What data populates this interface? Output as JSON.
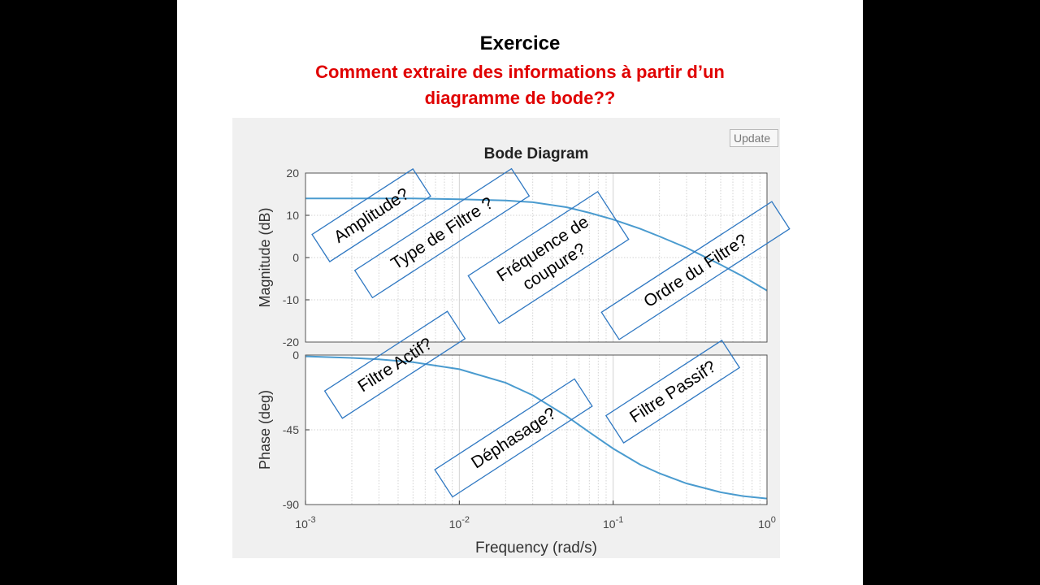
{
  "slide": {
    "heading": "Exercice",
    "question_line1": "Comment extraire des informations à partir d’un",
    "question_line2": "diagramme de bode??"
  },
  "figure": {
    "update_label": "Update"
  },
  "chart_data": {
    "type": "line",
    "title": "Bode Diagram",
    "xlabel": "Frequency  (rad/s)",
    "x_scale": "log",
    "xlim": [
      0.001,
      1
    ],
    "x_ticks": [
      {
        "base": "10",
        "exp": "-3"
      },
      {
        "base": "10",
        "exp": "-2"
      },
      {
        "base": "10",
        "exp": "-1"
      },
      {
        "base": "10",
        "exp": "0"
      }
    ],
    "grid": true,
    "line_color": "#4a9bcf",
    "panels": [
      {
        "name": "magnitude",
        "ylabel": "Magnitude (dB)",
        "ylim": [
          -20,
          20
        ],
        "y_ticks": [
          "20",
          "10",
          "0",
          "-10",
          "-20"
        ],
        "x": [
          0.001,
          0.002,
          0.005,
          0.01,
          0.02,
          0.03,
          0.05,
          0.07,
          0.1,
          0.15,
          0.2,
          0.3,
          0.5,
          0.7,
          1
        ],
        "y": [
          14,
          14,
          14,
          13.8,
          13.5,
          13.1,
          11.9,
          10.6,
          9.0,
          6.8,
          5.0,
          2.3,
          -1.7,
          -4.5,
          -7.8
        ]
      },
      {
        "name": "phase",
        "ylabel": "Phase (deg)",
        "ylim": [
          -90,
          0
        ],
        "y_ticks": [
          "0",
          "-45",
          "-90"
        ],
        "x": [
          0.001,
          0.002,
          0.003,
          0.005,
          0.01,
          0.02,
          0.03,
          0.05,
          0.07,
          0.1,
          0.15,
          0.2,
          0.3,
          0.5,
          0.7,
          1
        ],
        "y": [
          -0.8,
          -1.7,
          -2.6,
          -4.3,
          -8.5,
          -16.7,
          -24.2,
          -36.9,
          -46.4,
          -56.3,
          -66.0,
          -71.2,
          -77.3,
          -82.6,
          -84.9,
          -86.4
        ]
      }
    ],
    "annotations": [
      "Amplitude?",
      "Type de Filtre ?",
      "Fréquence de",
      "coupure?",
      "Ordre du Filtre?",
      "Filtre Actif?",
      "Déphasage?",
      "Filtre Passif?"
    ]
  }
}
